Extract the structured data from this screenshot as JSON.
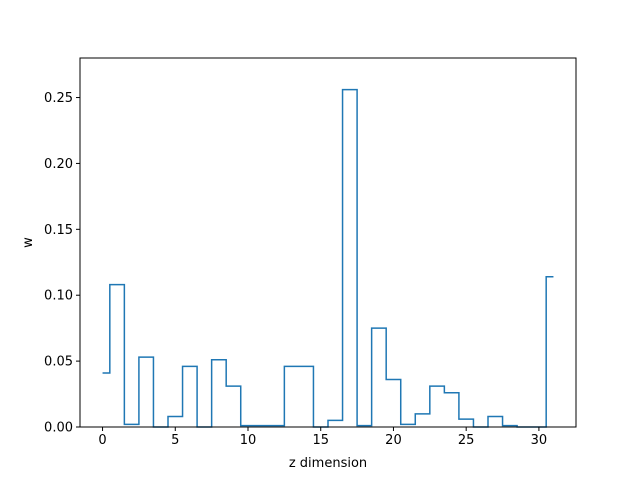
{
  "chart_data": {
    "type": "line",
    "drawstyle": "steps-mid",
    "title": "",
    "xlabel": "z dimension",
    "ylabel": "w",
    "xlim": [
      -1.55,
      32.55
    ],
    "ylim": [
      0.0,
      0.28
    ],
    "grid": false,
    "color": "#1f77b4",
    "xticks": [
      0,
      5,
      10,
      15,
      20,
      25,
      30
    ],
    "xtick_labels": [
      "0",
      "5",
      "10",
      "15",
      "20",
      "25",
      "30"
    ],
    "yticks": [
      0.0,
      0.05,
      0.1,
      0.15,
      0.2,
      0.25
    ],
    "ytick_labels": [
      "0.00",
      "0.05",
      "0.10",
      "0.15",
      "0.20",
      "0.25"
    ],
    "x": [
      0,
      1,
      2,
      3,
      4,
      5,
      6,
      7,
      8,
      9,
      10,
      11,
      12,
      13,
      14,
      15,
      16,
      17,
      18,
      19,
      20,
      21,
      22,
      23,
      24,
      25,
      26,
      27,
      28,
      29,
      30,
      31
    ],
    "values": [
      0.041,
      0.108,
      0.002,
      0.053,
      0.0,
      0.008,
      0.046,
      0.0,
      0.051,
      0.031,
      0.001,
      0.001,
      0.001,
      0.046,
      0.046,
      0.0,
      0.005,
      0.256,
      0.001,
      0.075,
      0.036,
      0.002,
      0.01,
      0.031,
      0.026,
      0.006,
      0.0,
      0.008,
      0.001,
      0.0,
      0.0,
      0.114
    ]
  }
}
